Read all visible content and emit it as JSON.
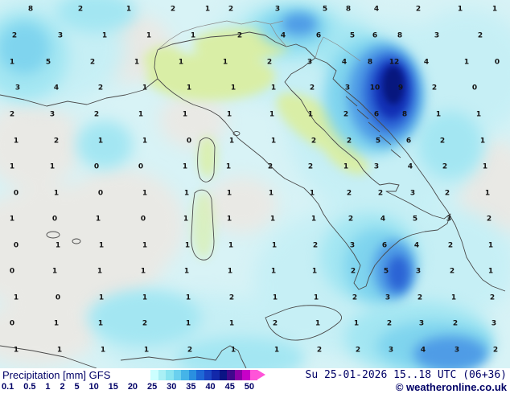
{
  "legend": {
    "title": "Precipitation [mm] GFS",
    "scale_labels": [
      "0.1",
      "0.5",
      "1",
      "2",
      "5",
      "10",
      "15",
      "20",
      "25",
      "30",
      "35",
      "40",
      "45",
      "50"
    ],
    "scale_colors": [
      "#ccffff",
      "#aaf0f5",
      "#8ae4f0",
      "#6ad0ee",
      "#45b4e8",
      "#2a90e0",
      "#1e68d6",
      "#1a46c4",
      "#1228aa",
      "#0a1484",
      "#40088c",
      "#8c00a8",
      "#c800c8",
      "#ff54d8"
    ],
    "datetime": "Su 25-01-2026 15..18 UTC (06+36)",
    "copyright": "© weatheronline.co.uk",
    "text_color": "#000066"
  },
  "map": {
    "palette": {
      "base_sea": "#d8f3f6",
      "dry_gray": "#e9e9e5",
      "light_precip": "#c6eff5",
      "medium_cyan": "#a3e6f2",
      "strong_cyan": "#7fd4ee",
      "blue": "#4f9ce6",
      "deep_blue": "#2b63d4",
      "navy": "#122fb4",
      "dark_core": "#07177e",
      "land_green": "#d9eea6"
    },
    "values": [
      [
        38,
        12,
        "8"
      ],
      [
        100,
        12,
        "2"
      ],
      [
        160,
        12,
        "1"
      ],
      [
        215,
        12,
        "2"
      ],
      [
        258,
        12,
        "1"
      ],
      [
        287,
        12,
        "2"
      ],
      [
        345,
        12,
        "3"
      ],
      [
        404,
        12,
        "5"
      ],
      [
        433,
        12,
        "8"
      ],
      [
        468,
        12,
        "4"
      ],
      [
        520,
        12,
        "2"
      ],
      [
        572,
        12,
        "1"
      ],
      [
        615,
        12,
        "1"
      ],
      [
        18,
        45,
        "2"
      ],
      [
        75,
        45,
        "3"
      ],
      [
        130,
        45,
        "1"
      ],
      [
        185,
        45,
        "1"
      ],
      [
        240,
        45,
        "1"
      ],
      [
        298,
        45,
        "2"
      ],
      [
        352,
        45,
        "4"
      ],
      [
        396,
        45,
        "6"
      ],
      [
        438,
        45,
        "5"
      ],
      [
        466,
        45,
        "6"
      ],
      [
        497,
        45,
        "8"
      ],
      [
        543,
        45,
        "3"
      ],
      [
        597,
        45,
        "2"
      ],
      [
        15,
        78,
        "1"
      ],
      [
        60,
        78,
        "5"
      ],
      [
        115,
        78,
        "2"
      ],
      [
        170,
        78,
        "1"
      ],
      [
        225,
        78,
        "1"
      ],
      [
        280,
        78,
        "1"
      ],
      [
        335,
        78,
        "2"
      ],
      [
        385,
        78,
        "3"
      ],
      [
        428,
        78,
        "4"
      ],
      [
        460,
        78,
        "8"
      ],
      [
        490,
        78,
        "12"
      ],
      [
        530,
        78,
        "4"
      ],
      [
        580,
        78,
        "1"
      ],
      [
        618,
        78,
        "0"
      ],
      [
        22,
        110,
        "3"
      ],
      [
        70,
        110,
        "4"
      ],
      [
        125,
        110,
        "2"
      ],
      [
        180,
        110,
        "1"
      ],
      [
        235,
        110,
        "1"
      ],
      [
        290,
        110,
        "1"
      ],
      [
        340,
        110,
        "1"
      ],
      [
        388,
        110,
        "2"
      ],
      [
        432,
        110,
        "3"
      ],
      [
        466,
        110,
        "10"
      ],
      [
        498,
        110,
        "9"
      ],
      [
        540,
        110,
        "2"
      ],
      [
        590,
        110,
        "0"
      ],
      [
        15,
        143,
        "2"
      ],
      [
        65,
        143,
        "3"
      ],
      [
        120,
        143,
        "2"
      ],
      [
        175,
        143,
        "1"
      ],
      [
        230,
        143,
        "1"
      ],
      [
        285,
        143,
        "1"
      ],
      [
        338,
        143,
        "1"
      ],
      [
        386,
        143,
        "1"
      ],
      [
        430,
        143,
        "2"
      ],
      [
        468,
        143,
        "6"
      ],
      [
        503,
        143,
        "8"
      ],
      [
        545,
        143,
        "1"
      ],
      [
        595,
        143,
        "1"
      ],
      [
        20,
        176,
        "1"
      ],
      [
        70,
        176,
        "2"
      ],
      [
        125,
        176,
        "1"
      ],
      [
        180,
        176,
        "1"
      ],
      [
        235,
        176,
        "0"
      ],
      [
        288,
        176,
        "1"
      ],
      [
        340,
        176,
        "1"
      ],
      [
        390,
        176,
        "2"
      ],
      [
        434,
        176,
        "2"
      ],
      [
        470,
        176,
        "5"
      ],
      [
        508,
        176,
        "6"
      ],
      [
        550,
        176,
        "2"
      ],
      [
        600,
        176,
        "1"
      ],
      [
        15,
        208,
        "1"
      ],
      [
        65,
        208,
        "1"
      ],
      [
        120,
        208,
        "0"
      ],
      [
        175,
        208,
        "0"
      ],
      [
        230,
        208,
        "1"
      ],
      [
        284,
        208,
        "1"
      ],
      [
        336,
        208,
        "2"
      ],
      [
        386,
        208,
        "2"
      ],
      [
        430,
        208,
        "1"
      ],
      [
        468,
        208,
        "3"
      ],
      [
        510,
        208,
        "4"
      ],
      [
        553,
        208,
        "2"
      ],
      [
        603,
        208,
        "1"
      ],
      [
        20,
        241,
        "0"
      ],
      [
        70,
        241,
        "1"
      ],
      [
        125,
        241,
        "0"
      ],
      [
        180,
        241,
        "1"
      ],
      [
        232,
        241,
        "1"
      ],
      [
        285,
        241,
        "1"
      ],
      [
        337,
        241,
        "1"
      ],
      [
        388,
        241,
        "1"
      ],
      [
        434,
        241,
        "2"
      ],
      [
        473,
        241,
        "2"
      ],
      [
        513,
        241,
        "3"
      ],
      [
        556,
        241,
        "2"
      ],
      [
        606,
        241,
        "1"
      ],
      [
        15,
        273,
        "1"
      ],
      [
        68,
        273,
        "0"
      ],
      [
        122,
        273,
        "1"
      ],
      [
        178,
        273,
        "0"
      ],
      [
        231,
        273,
        "1"
      ],
      [
        285,
        273,
        "1"
      ],
      [
        339,
        273,
        "1"
      ],
      [
        390,
        273,
        "1"
      ],
      [
        436,
        273,
        "2"
      ],
      [
        476,
        273,
        "4"
      ],
      [
        516,
        273,
        "5"
      ],
      [
        558,
        273,
        "3"
      ],
      [
        608,
        273,
        "2"
      ],
      [
        20,
        306,
        "0"
      ],
      [
        72,
        306,
        "1"
      ],
      [
        126,
        306,
        "1"
      ],
      [
        180,
        306,
        "1"
      ],
      [
        233,
        306,
        "1"
      ],
      [
        287,
        306,
        "1"
      ],
      [
        341,
        306,
        "1"
      ],
      [
        392,
        306,
        "2"
      ],
      [
        438,
        306,
        "3"
      ],
      [
        478,
        306,
        "6"
      ],
      [
        518,
        306,
        "4"
      ],
      [
        560,
        306,
        "2"
      ],
      [
        610,
        306,
        "1"
      ],
      [
        15,
        338,
        "0"
      ],
      [
        68,
        338,
        "1"
      ],
      [
        124,
        338,
        "1"
      ],
      [
        178,
        338,
        "1"
      ],
      [
        232,
        338,
        "1"
      ],
      [
        286,
        338,
        "1"
      ],
      [
        340,
        338,
        "1"
      ],
      [
        391,
        338,
        "1"
      ],
      [
        439,
        338,
        "2"
      ],
      [
        480,
        338,
        "5"
      ],
      [
        520,
        338,
        "3"
      ],
      [
        562,
        338,
        "2"
      ],
      [
        610,
        338,
        "1"
      ],
      [
        20,
        371,
        "1"
      ],
      [
        72,
        371,
        "0"
      ],
      [
        126,
        371,
        "1"
      ],
      [
        180,
        371,
        "1"
      ],
      [
        234,
        371,
        "1"
      ],
      [
        288,
        371,
        "2"
      ],
      [
        342,
        371,
        "1"
      ],
      [
        393,
        371,
        "1"
      ],
      [
        441,
        371,
        "2"
      ],
      [
        482,
        371,
        "3"
      ],
      [
        522,
        371,
        "2"
      ],
      [
        564,
        371,
        "1"
      ],
      [
        612,
        371,
        "2"
      ],
      [
        15,
        403,
        "0"
      ],
      [
        70,
        403,
        "1"
      ],
      [
        125,
        403,
        "1"
      ],
      [
        180,
        403,
        "2"
      ],
      [
        234,
        403,
        "1"
      ],
      [
        288,
        403,
        "1"
      ],
      [
        342,
        403,
        "2"
      ],
      [
        395,
        403,
        "1"
      ],
      [
        443,
        403,
        "1"
      ],
      [
        484,
        403,
        "2"
      ],
      [
        524,
        403,
        "3"
      ],
      [
        566,
        403,
        "2"
      ],
      [
        614,
        403,
        "3"
      ],
      [
        20,
        436,
        "1"
      ],
      [
        74,
        436,
        "1"
      ],
      [
        128,
        436,
        "1"
      ],
      [
        182,
        436,
        "1"
      ],
      [
        236,
        436,
        "2"
      ],
      [
        290,
        436,
        "1"
      ],
      [
        344,
        436,
        "1"
      ],
      [
        397,
        436,
        "2"
      ],
      [
        445,
        436,
        "2"
      ],
      [
        486,
        436,
        "3"
      ],
      [
        526,
        436,
        "4"
      ],
      [
        568,
        436,
        "3"
      ],
      [
        616,
        436,
        "2"
      ]
    ]
  }
}
